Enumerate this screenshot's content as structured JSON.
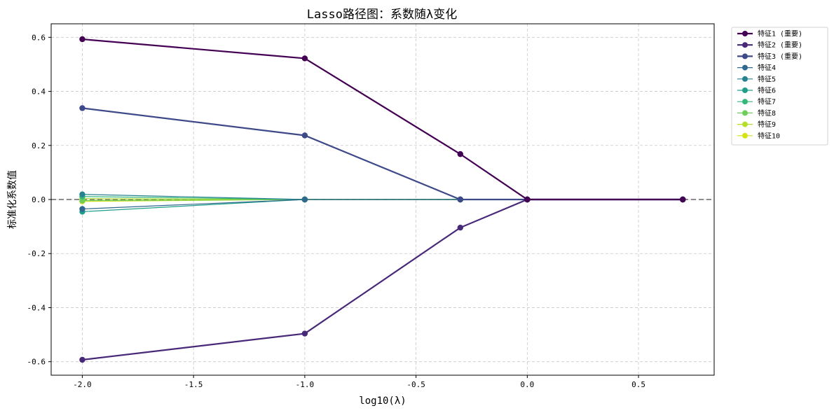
{
  "chart_data": {
    "type": "line",
    "title": "Lasso路径图：系数随λ变化",
    "xlabel": "log10(λ)",
    "ylabel": "标准化系数值",
    "x": [
      -2.0,
      -1.0,
      -0.301,
      0.0,
      0.699
    ],
    "xlim": [
      -2.14,
      0.84
    ],
    "ylim": [
      -0.65,
      0.65
    ],
    "xticks": [
      -2.0,
      -1.5,
      -1.0,
      -0.5,
      0.0,
      0.5
    ],
    "xtick_labels": [
      "-2.0",
      "-1.5",
      "-1.0",
      "-0.5",
      "0.0",
      "0.5"
    ],
    "yticks": [
      -0.6,
      -0.4,
      -0.2,
      0.0,
      0.2,
      0.4,
      0.6
    ],
    "ytick_labels": [
      "-0.6",
      "-0.4",
      "-0.2",
      "0.0",
      "0.2",
      "0.4",
      "0.6"
    ],
    "grid": true,
    "grid_style": "dashed",
    "reference_line_y": 0.0,
    "legend_position": "outside-top-right",
    "series": [
      {
        "name": "特征1 (重要)",
        "color": "#440154",
        "important": true,
        "values": [
          0.593,
          0.522,
          0.168,
          0.0,
          0.0
        ]
      },
      {
        "name": "特征2 (重要)",
        "color": "#482878",
        "important": true,
        "values": [
          -0.593,
          -0.496,
          -0.104,
          0.0,
          0.0
        ]
      },
      {
        "name": "特征3 (重要)",
        "color": "#3e4989",
        "important": true,
        "values": [
          0.338,
          0.237,
          0.0,
          0.0,
          0.0
        ]
      },
      {
        "name": "特征4",
        "color": "#31688e",
        "important": false,
        "values": [
          -0.035,
          0.0,
          0.0,
          0.0,
          0.0
        ]
      },
      {
        "name": "特征5",
        "color": "#26828e",
        "important": false,
        "values": [
          0.019,
          0.0,
          0.0,
          0.0,
          0.0
        ]
      },
      {
        "name": "特征6",
        "color": "#1f9e89",
        "important": false,
        "values": [
          -0.045,
          0.0,
          0.0,
          0.0,
          0.0
        ]
      },
      {
        "name": "特征7",
        "color": "#35b779",
        "important": false,
        "values": [
          0.011,
          0.0,
          0.0,
          0.0,
          0.0
        ]
      },
      {
        "name": "特征8",
        "color": "#6ece58",
        "important": false,
        "values": [
          -0.004,
          0.0,
          0.0,
          0.0,
          0.0
        ]
      },
      {
        "name": "特征9",
        "color": "#b5de2b",
        "important": false,
        "values": [
          0.003,
          0.0,
          0.0,
          0.0,
          0.0
        ]
      },
      {
        "name": "特征10",
        "color": "#d4e21a",
        "important": false,
        "values": [
          -0.007,
          0.0,
          0.0,
          0.0,
          0.0
        ]
      }
    ]
  }
}
